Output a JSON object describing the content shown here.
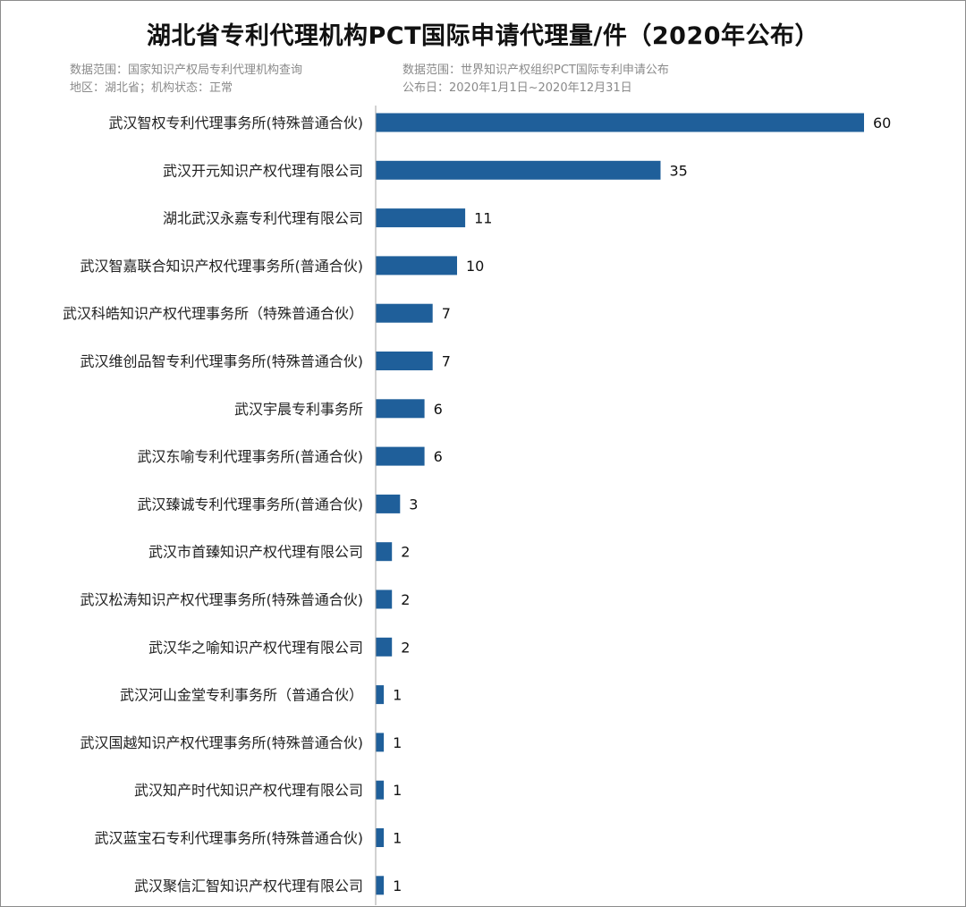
{
  "title": "湖北省专利代理机构PCT国际申请代理量/件（2020年公布）",
  "notes": {
    "left_line1": "数据范围：国家知识产权局专利代理机构查询",
    "left_line2": "地区：湖北省；机构状态：正常",
    "right_line1": "数据范围：世界知识产权组织PCT国际专利申请公布",
    "right_line2": "公布日：2020年1月1日~2020年12月31日"
  },
  "colors": {
    "bar": "#1f5f9a",
    "axis": "#a6a6a6",
    "label": "#222222",
    "frame": "#8c8c8c",
    "note": "#8a8a8a"
  },
  "chart_data": {
    "type": "bar",
    "orientation": "horizontal",
    "categories": [
      "武汉智权专利代理事务所(特殊普通合伙)",
      "武汉开元知识产权代理有限公司",
      "湖北武汉永嘉专利代理有限公司",
      "武汉智嘉联合知识产权代理事务所(普通合伙)",
      "武汉科皓知识产权代理事务所（特殊普通合伙）",
      "武汉维创品智专利代理事务所(特殊普通合伙)",
      "武汉宇晨专利事务所",
      "武汉东喻专利代理事务所(普通合伙)",
      "武汉臻诚专利代理事务所(普通合伙)",
      "武汉市首臻知识产权代理有限公司",
      "武汉松涛知识产权代理事务所(特殊普通合伙)",
      "武汉华之喻知识产权代理有限公司",
      "武汉河山金堂专利事务所（普通合伙）",
      "武汉国越知识产权代理事务所(特殊普通合伙)",
      "武汉知产时代知识产权代理有限公司",
      "武汉蓝宝石专利代理事务所(特殊普通合伙)",
      "武汉聚信汇智知识产权代理有限公司"
    ],
    "values": [
      60,
      35,
      11,
      10,
      7,
      7,
      6,
      6,
      3,
      2,
      2,
      2,
      1,
      1,
      1,
      1,
      1
    ],
    "data_labels": true,
    "xlim": [
      0,
      60
    ],
    "grid": false,
    "legend": "none"
  }
}
